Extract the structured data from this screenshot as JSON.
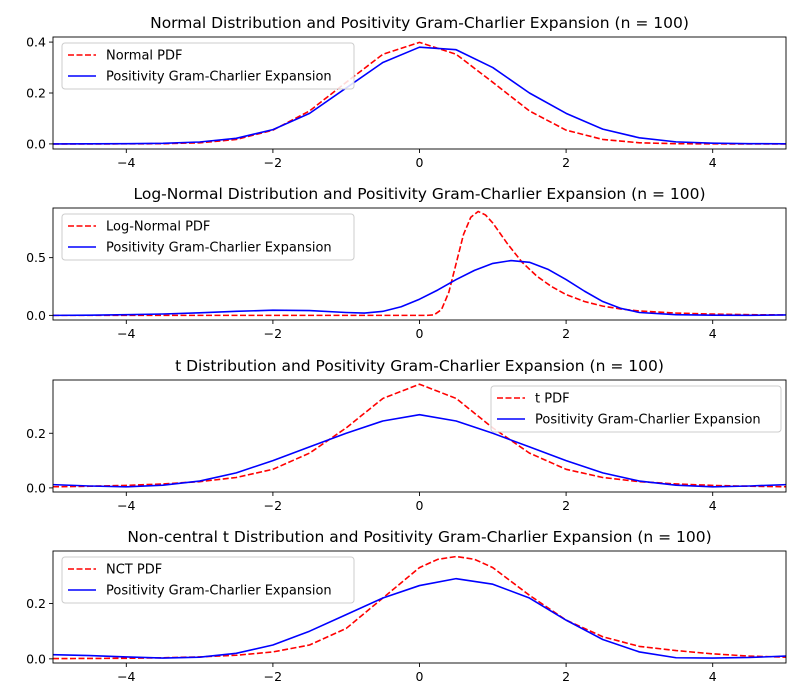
{
  "colors": {
    "dashed": "#ff0000",
    "solid": "#0000ff"
  },
  "chart_data": [
    {
      "type": "line",
      "title": "Normal Distribution and Positivity Gram-Charlier Expansion (n = 100)",
      "xlim": [
        -5,
        5
      ],
      "ylim": [
        -0.02,
        0.42
      ],
      "xticks": [
        -4,
        -2,
        0,
        2,
        4
      ],
      "xtick_labels": [
        "−4",
        "−2",
        "0",
        "2",
        "4"
      ],
      "yticks": [
        0.0,
        0.2,
        0.4
      ],
      "ytick_labels": [
        "0.0",
        "0.2",
        "0.4"
      ],
      "legend_position": "top-left",
      "series": [
        {
          "name": "Normal PDF",
          "style": "dashed",
          "color": "#ff0000",
          "x": [
            -5,
            -4.5,
            -4,
            -3.5,
            -3,
            -2.5,
            -2,
            -1.5,
            -1,
            -0.5,
            0,
            0.5,
            1,
            1.5,
            2,
            2.5,
            3,
            3.5,
            4,
            4.5,
            5
          ],
          "y": [
            0,
            0,
            0.0001,
            0.0009,
            0.0044,
            0.0175,
            0.054,
            0.1295,
            0.242,
            0.3521,
            0.3989,
            0.3521,
            0.242,
            0.1295,
            0.054,
            0.0175,
            0.0044,
            0.0009,
            0.0001,
            0,
            0
          ]
        },
        {
          "name": "Positivity Gram-Charlier Expansion",
          "style": "solid",
          "color": "#0000ff",
          "x": [
            -5,
            -4.5,
            -4,
            -3.5,
            -3,
            -2.5,
            -2,
            -1.5,
            -1,
            -0.5,
            0,
            0.5,
            1,
            1.5,
            2,
            2.5,
            3,
            3.5,
            4,
            4.5,
            5
          ],
          "y": [
            0,
            0.0002,
            0.0008,
            0.0025,
            0.0075,
            0.022,
            0.056,
            0.12,
            0.22,
            0.32,
            0.38,
            0.37,
            0.3,
            0.2,
            0.12,
            0.058,
            0.024,
            0.008,
            0.003,
            0.001,
            0.0005
          ]
        }
      ]
    },
    {
      "type": "line",
      "title": "Log-Normal Distribution and Positivity Gram-Charlier Expansion (n = 100)",
      "xlim": [
        -5,
        5
      ],
      "ylim": [
        -0.04,
        0.93
      ],
      "xticks": [
        -4,
        -2,
        0,
        2,
        4
      ],
      "xtick_labels": [
        "−4",
        "−2",
        "0",
        "2",
        "4"
      ],
      "yticks": [
        0.0,
        0.5
      ],
      "ytick_labels": [
        "0.0",
        "0.5"
      ],
      "legend_position": "top-left",
      "series": [
        {
          "name": "Log-Normal PDF",
          "style": "dashed",
          "color": "#ff0000",
          "x": [
            -5,
            -3,
            -1,
            0,
            0.1,
            0.2,
            0.3,
            0.4,
            0.5,
            0.6,
            0.7,
            0.8,
            0.9,
            1,
            1.2,
            1.4,
            1.6,
            1.8,
            2,
            2.25,
            2.5,
            2.75,
            3,
            3.5,
            4,
            4.5,
            5
          ],
          "y": [
            0,
            0,
            0,
            0,
            0,
            0.005,
            0.05,
            0.2,
            0.45,
            0.7,
            0.85,
            0.9,
            0.87,
            0.8,
            0.62,
            0.46,
            0.34,
            0.25,
            0.18,
            0.12,
            0.08,
            0.055,
            0.038,
            0.02,
            0.011,
            0.006,
            0.004
          ]
        },
        {
          "name": "Positivity Gram-Charlier Expansion",
          "style": "solid",
          "color": "#0000ff",
          "x": [
            -5,
            -4.5,
            -4,
            -3.5,
            -3,
            -2.5,
            -2,
            -1.5,
            -1,
            -0.75,
            -0.5,
            -0.25,
            0,
            0.25,
            0.5,
            0.75,
            1,
            1.25,
            1.5,
            1.75,
            2,
            2.25,
            2.5,
            2.75,
            3,
            3.5,
            4,
            4.5,
            5
          ],
          "y": [
            0,
            0.002,
            0.006,
            0.012,
            0.022,
            0.035,
            0.045,
            0.042,
            0.025,
            0.02,
            0.035,
            0.075,
            0.14,
            0.22,
            0.31,
            0.39,
            0.45,
            0.475,
            0.46,
            0.4,
            0.31,
            0.21,
            0.12,
            0.06,
            0.025,
            0.006,
            0.002,
            0.001,
            0.004
          ]
        }
      ]
    },
    {
      "type": "line",
      "title": "t Distribution and Positivity Gram-Charlier Expansion (n = 100)",
      "xlim": [
        -5,
        5
      ],
      "ylim": [
        -0.015,
        0.395
      ],
      "xticks": [
        -4,
        -2,
        0,
        2,
        4
      ],
      "xtick_labels": [
        "−4",
        "−2",
        "0",
        "2",
        "4"
      ],
      "yticks": [
        0.0,
        0.2
      ],
      "ytick_labels": [
        "0.0",
        "0.2"
      ],
      "legend_position": "top-right",
      "series": [
        {
          "name": "t PDF",
          "style": "dashed",
          "color": "#ff0000",
          "x": [
            -5,
            -4.5,
            -4,
            -3.5,
            -3,
            -2.5,
            -2,
            -1.5,
            -1,
            -0.5,
            0,
            0.5,
            1,
            1.5,
            2,
            2.5,
            3,
            3.5,
            4,
            4.5,
            5
          ],
          "y": [
            0.0042,
            0.0061,
            0.0091,
            0.0145,
            0.0229,
            0.0381,
            0.0681,
            0.1274,
            0.2197,
            0.3275,
            0.3796,
            0.3275,
            0.2197,
            0.1274,
            0.0681,
            0.0381,
            0.0229,
            0.0145,
            0.0091,
            0.0061,
            0.0042
          ]
        },
        {
          "name": "Positivity Gram-Charlier Expansion",
          "style": "solid",
          "color": "#0000ff",
          "x": [
            -5,
            -4.5,
            -4,
            -3.5,
            -3,
            -2.5,
            -2,
            -1.5,
            -1,
            -0.5,
            0,
            0.5,
            1,
            1.5,
            2,
            2.5,
            3,
            3.5,
            4,
            4.5,
            5
          ],
          "y": [
            0.012,
            0.007,
            0.004,
            0.01,
            0.025,
            0.055,
            0.1,
            0.15,
            0.2,
            0.245,
            0.268,
            0.245,
            0.2,
            0.15,
            0.1,
            0.055,
            0.025,
            0.01,
            0.004,
            0.007,
            0.012
          ]
        }
      ]
    },
    {
      "type": "line",
      "title": "Non-central t Distribution and Positivity Gram-Charlier Expansion (n = 100)",
      "xlim": [
        -5,
        5
      ],
      "ylim": [
        -0.015,
        0.39
      ],
      "xticks": [
        -4,
        -2,
        0,
        2,
        4
      ],
      "xtick_labels": [
        "−4",
        "−2",
        "0",
        "2",
        "4"
      ],
      "yticks": [
        0.0,
        0.2
      ],
      "ytick_labels": [
        "0.0",
        "0.2"
      ],
      "legend_position": "top-left",
      "series": [
        {
          "name": "NCT PDF",
          "style": "dashed",
          "color": "#ff0000",
          "x": [
            -5,
            -4.5,
            -4,
            -3.5,
            -3,
            -2.5,
            -2,
            -1.5,
            -1,
            -0.5,
            0,
            0.25,
            0.5,
            0.75,
            1,
            1.5,
            2,
            2.5,
            3,
            3.5,
            4,
            4.5,
            5
          ],
          "y": [
            0.001,
            0.0015,
            0.002,
            0.004,
            0.007,
            0.013,
            0.025,
            0.05,
            0.11,
            0.22,
            0.33,
            0.36,
            0.37,
            0.36,
            0.33,
            0.23,
            0.14,
            0.08,
            0.045,
            0.03,
            0.018,
            0.01,
            0.006
          ]
        },
        {
          "name": "Positivity Gram-Charlier Expansion",
          "style": "solid",
          "color": "#0000ff",
          "x": [
            -5,
            -4.5,
            -4,
            -3.5,
            -3,
            -2.5,
            -2,
            -1.5,
            -1,
            -0.5,
            0,
            0.5,
            1,
            1.5,
            2,
            2.5,
            3,
            3.5,
            4,
            4.5,
            5
          ],
          "y": [
            0.015,
            0.012,
            0.007,
            0.003,
            0.006,
            0.02,
            0.05,
            0.1,
            0.16,
            0.22,
            0.265,
            0.29,
            0.27,
            0.22,
            0.14,
            0.07,
            0.025,
            0.004,
            0.003,
            0.005,
            0.01
          ]
        }
      ]
    }
  ]
}
